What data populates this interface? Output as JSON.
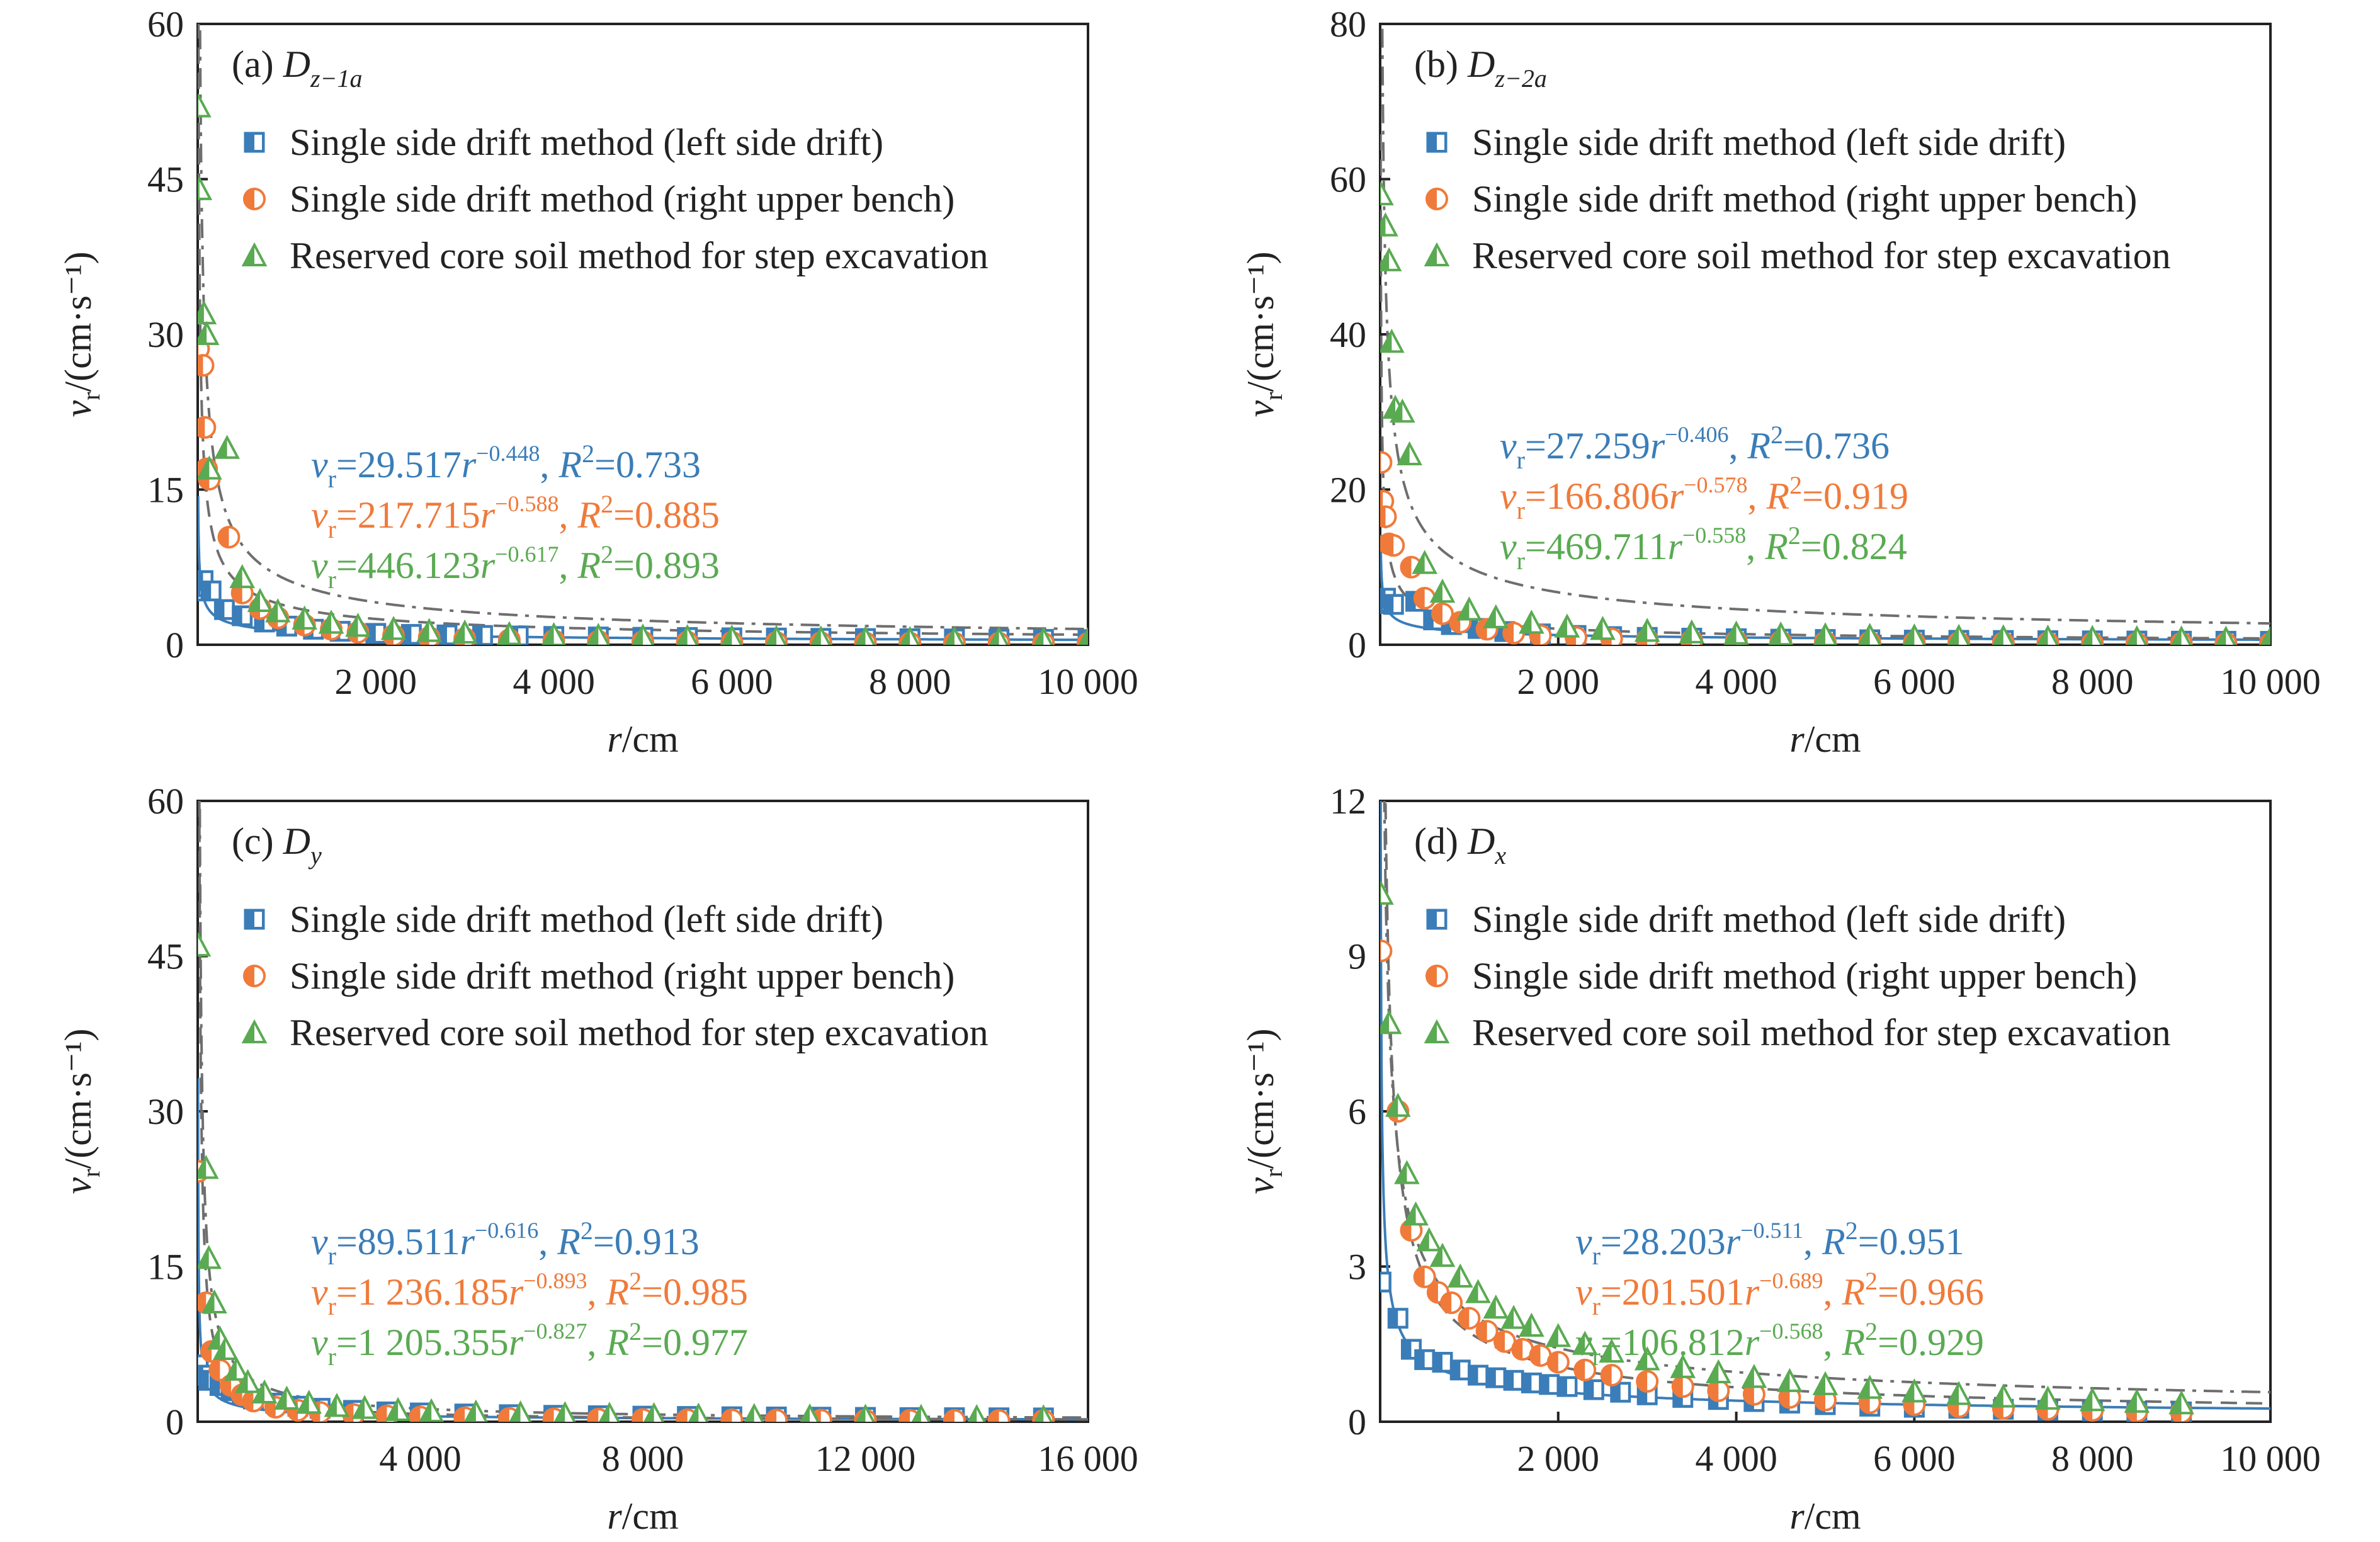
{
  "colors": {
    "series1": "#3a7db8",
    "series2": "#f07a3a",
    "series3": "#5aaa52",
    "axis": "#222222",
    "fit": "#6e6e6e"
  },
  "legend_labels": [
    "Single side drift method (left side drift)",
    "Single side drift method (right upper bench)",
    "Reserved core soil method for step excavation"
  ],
  "chart_data": [
    {
      "type": "scatter",
      "panel_label": "(a)",
      "panel_symbol": "D",
      "panel_subscript": "z−1a",
      "xlabel": "r/cm",
      "ylabel": "vr/(cm·s⁻¹)",
      "xlim": [
        0,
        10000
      ],
      "ylim": [
        0,
        60
      ],
      "xticks": [
        2000,
        4000,
        6000,
        8000,
        10000
      ],
      "xtick_labels": [
        "2 000",
        "4 000",
        "6 000",
        "8 000",
        "10 000"
      ],
      "yticks": [
        0,
        15,
        30,
        45,
        60
      ],
      "ytick_labels": [
        "0",
        "15",
        "30",
        "45",
        "60"
      ],
      "legend_position": "top-left",
      "fits": [
        {
          "a": 29.517,
          "b": -0.448,
          "r2": "0.733",
          "coef_text": "29.517",
          "exp_text": "−0.448"
        },
        {
          "a": 217.715,
          "b": -0.588,
          "r2": "0.885",
          "coef_text": "217.715",
          "exp_text": "−0.588"
        },
        {
          "a": 446.123,
          "b": -0.617,
          "r2": "0.893",
          "coef_text": "446.123",
          "exp_text": "−0.617"
        }
      ],
      "series": [
        {
          "name": "Single side drift method (left side drift)",
          "marker": "square",
          "x": [
            10,
            30,
            60,
            150,
            300,
            500,
            750,
            1000,
            1300,
            1600,
            2000,
            2400,
            2800,
            3200,
            3600,
            4000,
            4500,
            5000,
            5500,
            6000,
            6500,
            7000,
            7500,
            8000,
            8500,
            9000,
            9500,
            10000
          ],
          "y": [
            5.2,
            5.6,
            6.2,
            5.2,
            3.4,
            2.8,
            2.2,
            1.8,
            1.5,
            1.3,
            1.1,
            1.0,
            0.95,
            0.9,
            0.85,
            0.8,
            0.75,
            0.72,
            0.7,
            0.67,
            0.65,
            0.62,
            0.6,
            0.58,
            0.56,
            0.54,
            0.52,
            0.5
          ]
        },
        {
          "name": "Single side drift method (right upper bench)",
          "marker": "circle",
          "x": [
            10,
            60,
            80,
            100,
            130,
            350,
            500,
            700,
            900,
            1200,
            1500,
            1800,
            2200,
            2600,
            3000,
            3500,
            4000,
            4500,
            5000,
            5500,
            6000,
            6500,
            7000,
            7500,
            8000,
            8500,
            9000,
            9500,
            10000
          ],
          "y": [
            28.6,
            27,
            21,
            17,
            16,
            10.4,
            5.0,
            3.5,
            2.6,
            1.9,
            1.5,
            1.2,
            0.9,
            0.7,
            0.6,
            0.48,
            0.4,
            0.34,
            0.3,
            0.27,
            0.24,
            0.22,
            0.2,
            0.18,
            0.17,
            0.16,
            0.15,
            0.14,
            0.13
          ]
        },
        {
          "name": "Reserved core soil method for step excavation",
          "marker": "triangle",
          "x": [
            10,
            20,
            70,
            100,
            130,
            330,
            500,
            700,
            900,
            1200,
            1500,
            1800,
            2200,
            2600,
            3000,
            3500,
            4000,
            4500,
            5000,
            5500,
            6000,
            6500,
            7000,
            7500,
            8000,
            8500,
            9000,
            9500,
            10000
          ],
          "y": [
            52,
            44,
            32,
            30,
            17,
            19,
            6.5,
            4.2,
            3.2,
            2.5,
            2.1,
            1.8,
            1.5,
            1.3,
            1.15,
            1.0,
            0.9,
            0.82,
            0.76,
            0.7,
            0.66,
            0.62,
            0.58,
            0.55,
            0.52,
            0.5,
            0.48,
            0.46,
            0.44
          ]
        }
      ]
    },
    {
      "type": "scatter",
      "panel_label": "(b)",
      "panel_symbol": "D",
      "panel_subscript": "z−2a",
      "xlabel": "r/cm",
      "ylabel": "vr/(cm·s⁻¹)",
      "xlim": [
        0,
        10000
      ],
      "ylim": [
        0,
        80
      ],
      "xticks": [
        2000,
        4000,
        6000,
        8000,
        10000
      ],
      "xtick_labels": [
        "2 000",
        "4 000",
        "6 000",
        "8 000",
        "10 000"
      ],
      "yticks": [
        0,
        20,
        40,
        60,
        80
      ],
      "ytick_labels": [
        "0",
        "20",
        "40",
        "60",
        "80"
      ],
      "legend_position": "top-left",
      "fits": [
        {
          "a": 27.259,
          "b": -0.406,
          "r2": "0.736",
          "coef_text": "27.259",
          "exp_text": "−0.406"
        },
        {
          "a": 166.806,
          "b": -0.578,
          "r2": "0.919",
          "coef_text": "166.806",
          "exp_text": "−0.578"
        },
        {
          "a": 469.711,
          "b": -0.558,
          "r2": "0.824",
          "coef_text": "469.711",
          "exp_text": "−0.558"
        }
      ],
      "series": [
        {
          "name": "Single side drift method (left side drift)",
          "marker": "square",
          "x": [
            10,
            30,
            60,
            150,
            400,
            600,
            800,
            1100,
            1400,
            1800,
            2200,
            2600,
            3000,
            3500,
            4000,
            4500,
            5000,
            5500,
            6000,
            6500,
            7000,
            7500,
            8000,
            8500,
            9000,
            9500,
            10000
          ],
          "y": [
            5.3,
            5.5,
            6.0,
            5.2,
            5.6,
            3.2,
            2.6,
            2.1,
            1.7,
            1.4,
            1.2,
            1.05,
            0.95,
            0.85,
            0.78,
            0.72,
            0.68,
            0.64,
            0.6,
            0.57,
            0.55,
            0.52,
            0.5,
            0.48,
            0.46,
            0.45,
            0.44
          ]
        },
        {
          "name": "Single side drift method (right upper bench)",
          "marker": "circle",
          "x": [
            10,
            30,
            60,
            100,
            150,
            350,
            500,
            700,
            900,
            1200,
            1500,
            1800,
            2200,
            2600,
            3000,
            3500,
            4000,
            4500,
            5000,
            5500,
            6000,
            6500,
            7000,
            7500,
            8000,
            8500,
            9000,
            9500,
            10000
          ],
          "y": [
            23.5,
            18.5,
            16.5,
            13,
            12.8,
            10,
            6.0,
            4.0,
            2.9,
            2.0,
            1.5,
            1.2,
            0.95,
            0.78,
            0.65,
            0.54,
            0.46,
            0.4,
            0.36,
            0.32,
            0.29,
            0.27,
            0.25,
            0.23,
            0.22,
            0.2,
            0.19,
            0.18,
            0.17
          ]
        },
        {
          "name": "Reserved core soil method for step excavation",
          "marker": "triangle",
          "x": [
            10,
            60,
            100,
            130,
            170,
            250,
            330,
            500,
            700,
            1000,
            1300,
            1700,
            2100,
            2500,
            3000,
            3500,
            4000,
            4500,
            5000,
            5500,
            6000,
            6500,
            7000,
            7500,
            8000,
            8500,
            9000,
            9500,
            10000
          ],
          "y": [
            58,
            54,
            49.5,
            39,
            30.5,
            30,
            24.5,
            10.5,
            6.8,
            4.5,
            3.5,
            2.8,
            2.3,
            2.0,
            1.75,
            1.55,
            1.4,
            1.28,
            1.18,
            1.1,
            1.03,
            0.97,
            0.92,
            0.88,
            0.84,
            0.8,
            0.77,
            0.74,
            0.72
          ]
        }
      ]
    },
    {
      "type": "scatter",
      "panel_label": "(c)",
      "panel_symbol": "D",
      "panel_subscript": "y",
      "xlabel": "r/cm",
      "ylabel": "vr/(cm·s⁻¹)",
      "xlim": [
        0,
        16000
      ],
      "ylim": [
        0,
        60
      ],
      "xticks": [
        4000,
        8000,
        12000,
        16000
      ],
      "xtick_labels": [
        "4 000",
        "8 000",
        "12 000",
        "16 000"
      ],
      "yticks": [
        0,
        15,
        30,
        45,
        60
      ],
      "ytick_labels": [
        "0",
        "15",
        "30",
        "45",
        "60"
      ],
      "legend_position": "top-left",
      "fits": [
        {
          "a": 89.511,
          "b": -0.616,
          "r2": "0.913",
          "coef_text": "89.511",
          "exp_text": "−0.616"
        },
        {
          "a": 1236.185,
          "b": -0.893,
          "r2": "0.985",
          "coef_text": "1 236.185",
          "exp_text": "−0.893"
        },
        {
          "a": 1205.355,
          "b": -0.827,
          "r2": "0.977",
          "coef_text": "1 205.355",
          "exp_text": "−0.827"
        }
      ],
      "series": [
        {
          "name": "Single side drift method (left side drift)",
          "marker": "square",
          "x": [
            10,
            100,
            200,
            400,
            600,
            800,
            1000,
            1400,
            1800,
            2200,
            2800,
            3400,
            4000,
            4800,
            5600,
            6400,
            7200,
            8000,
            8800,
            9600,
            10400,
            11200,
            12000,
            12800,
            13600,
            14400,
            15200
          ],
          "y": [
            5.5,
            4.5,
            4.0,
            3.5,
            3.0,
            2.6,
            2.2,
            1.8,
            1.5,
            1.3,
            1.1,
            0.95,
            0.85,
            0.75,
            0.68,
            0.62,
            0.58,
            0.54,
            0.51,
            0.48,
            0.46,
            0.44,
            0.42,
            0.4,
            0.39,
            0.38,
            0.37
          ]
        },
        {
          "name": "Single side drift method (right upper bench)",
          "marker": "circle",
          "x": [
            10,
            150,
            250,
            400,
            600,
            800,
            1000,
            1400,
            1800,
            2200,
            2800,
            3400,
            4000,
            4800,
            5600,
            6400,
            7200,
            8000,
            8800,
            9600,
            10400,
            11200,
            12000,
            12800,
            13600,
            14400,
            15200
          ],
          "y": [
            24.2,
            11.5,
            6.8,
            5.0,
            3.5,
            2.6,
            2.0,
            1.4,
            1.1,
            0.9,
            0.7,
            0.56,
            0.46,
            0.38,
            0.32,
            0.28,
            0.25,
            0.22,
            0.2,
            0.18,
            0.17,
            0.16,
            0.15,
            0.14,
            0.13,
            0.12,
            0.12
          ]
        },
        {
          "name": "Reserved core soil method for step excavation",
          "marker": "triangle",
          "x": [
            10,
            150,
            200,
            300,
            400,
            500,
            700,
            900,
            1200,
            1600,
            2000,
            2500,
            3000,
            3600,
            4200,
            5000,
            5800,
            6600,
            7400,
            8200,
            9000,
            10000,
            11000,
            12000,
            13000,
            14000,
            15200
          ],
          "y": [
            46,
            24.5,
            15.8,
            11.5,
            8.0,
            7.0,
            5.0,
            3.8,
            2.8,
            2.2,
            1.8,
            1.5,
            1.3,
            1.1,
            0.98,
            0.86,
            0.77,
            0.7,
            0.64,
            0.6,
            0.56,
            0.52,
            0.48,
            0.45,
            0.43,
            0.41,
            0.39
          ]
        }
      ]
    },
    {
      "type": "scatter",
      "panel_label": "(d)",
      "panel_symbol": "D",
      "panel_subscript": "x",
      "xlabel": "r/cm",
      "ylabel": "vr/(cm·s⁻¹)",
      "xlim": [
        0,
        10000
      ],
      "ylim": [
        0,
        12
      ],
      "xticks": [
        2000,
        4000,
        6000,
        8000,
        10000
      ],
      "xtick_labels": [
        "2 000",
        "4 000",
        "6 000",
        "8 000",
        "10 000"
      ],
      "yticks": [
        0,
        3,
        6,
        9,
        12
      ],
      "ytick_labels": [
        "0",
        "3",
        "6",
        "9",
        "12"
      ],
      "legend_position": "top-left",
      "fits": [
        {
          "a": 28.203,
          "b": -0.511,
          "r2": "0.951",
          "coef_text": "28.203",
          "exp_text": "−0.511"
        },
        {
          "a": 201.501,
          "b": -0.689,
          "r2": "0.966",
          "coef_text": "201.501",
          "exp_text": "−0.689"
        },
        {
          "a": 106.812,
          "b": -0.568,
          "r2": "0.929",
          "coef_text": "106.812",
          "exp_text": "−0.568"
        }
      ],
      "series": [
        {
          "name": "Single side drift method (left side drift)",
          "marker": "square",
          "x": [
            10,
            200,
            350,
            500,
            700,
            900,
            1100,
            1300,
            1500,
            1700,
            1900,
            2100,
            2400,
            2700,
            3000,
            3400,
            3800,
            4200,
            4600,
            5000,
            5500,
            6000,
            6500,
            7000,
            7500,
            8000,
            8500,
            9000
          ],
          "y": [
            2.7,
            2.0,
            1.4,
            1.2,
            1.15,
            1.0,
            0.9,
            0.85,
            0.8,
            0.75,
            0.72,
            0.68,
            0.62,
            0.57,
            0.52,
            0.47,
            0.43,
            0.39,
            0.36,
            0.33,
            0.3,
            0.28,
            0.26,
            0.24,
            0.22,
            0.21,
            0.2,
            0.19
          ]
        },
        {
          "name": "Single side drift method (right upper bench)",
          "marker": "circle",
          "x": [
            10,
            200,
            350,
            500,
            650,
            800,
            1000,
            1200,
            1400,
            1600,
            1800,
            2000,
            2300,
            2600,
            3000,
            3400,
            3800,
            4200,
            4600,
            5000,
            5500,
            6000,
            6500,
            7000,
            7500,
            8000,
            8500,
            9000
          ],
          "y": [
            9.1,
            6.0,
            3.7,
            2.8,
            2.5,
            2.3,
            2.0,
            1.75,
            1.55,
            1.4,
            1.28,
            1.15,
            1.0,
            0.9,
            0.78,
            0.68,
            0.6,
            0.53,
            0.47,
            0.42,
            0.37,
            0.33,
            0.29,
            0.26,
            0.24,
            0.22,
            0.2,
            0.18
          ]
        },
        {
          "name": "Reserved core soil method for step excavation",
          "marker": "triangle",
          "x": [
            10,
            100,
            200,
            300,
            400,
            550,
            700,
            900,
            1100,
            1300,
            1500,
            1700,
            2000,
            2300,
            2600,
            3000,
            3400,
            3800,
            4200,
            4600,
            5000,
            5500,
            6000,
            6500,
            7000,
            7500,
            8000,
            8500,
            9000
          ],
          "y": [
            10.2,
            7.7,
            6.1,
            4.8,
            4.0,
            3.5,
            3.2,
            2.8,
            2.5,
            2.2,
            2.0,
            1.85,
            1.65,
            1.5,
            1.35,
            1.2,
            1.05,
            0.95,
            0.86,
            0.78,
            0.72,
            0.65,
            0.58,
            0.53,
            0.48,
            0.44,
            0.41,
            0.38,
            0.35
          ]
        }
      ]
    }
  ]
}
